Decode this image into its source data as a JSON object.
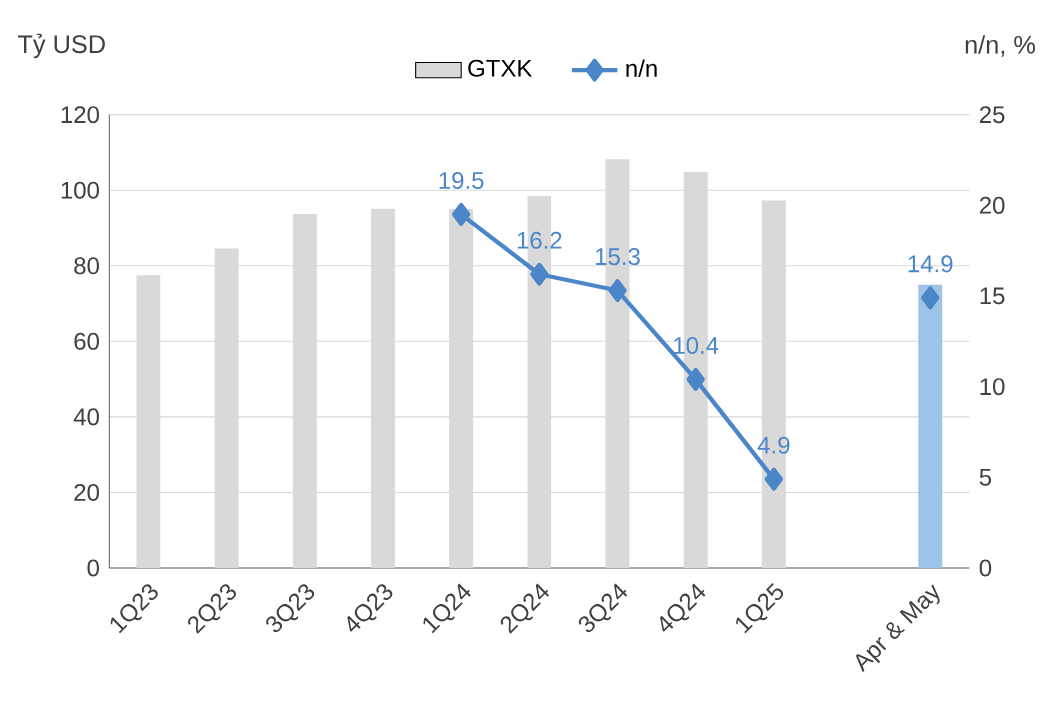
{
  "chart_data": {
    "type": "bar",
    "ylabel": "Tỷ USD",
    "y2label": "n/n, %",
    "categories": [
      "1Q23",
      "2Q23",
      "3Q23",
      "4Q23",
      "1Q24",
      "2Q24",
      "3Q24",
      "4Q24",
      "1Q25",
      null,
      "Apr & May"
    ],
    "series": [
      {
        "name": "GTXK",
        "color": "#d9d9d9",
        "colors": [
          "#d9d9d9",
          "#d9d9d9",
          "#d9d9d9",
          "#d9d9d9",
          "#d9d9d9",
          "#d9d9d9",
          "#d9d9d9",
          "#d9d9d9",
          "#d9d9d9",
          "#d9d9d9",
          "#9dc3e6"
        ],
        "values": [
          77.5,
          84.6,
          93.7,
          95.1,
          95,
          98.5,
          108.2,
          104.8,
          97.3,
          null,
          75
        ]
      },
      {
        "name": "n/n",
        "type": "line",
        "axis": "y2",
        "color": "#4a86c8",
        "marker": "diamond",
        "values": [
          null,
          null,
          null,
          null,
          19.5,
          16.2,
          15.3,
          10.4,
          4.9,
          null,
          14.9
        ],
        "value_labels": [
          null,
          null,
          null,
          null,
          "19.5",
          "16.2",
          "15.3",
          "10.4",
          "4.9",
          null,
          "14.9"
        ]
      }
    ],
    "ylim": [
      0,
      120
    ],
    "yticks": [
      0,
      20,
      40,
      60,
      80,
      100,
      120
    ],
    "y2lim": [
      0,
      25
    ],
    "y2ticks": [
      0,
      5,
      10,
      15,
      20,
      25
    ],
    "grid": "y",
    "legend": "top"
  }
}
